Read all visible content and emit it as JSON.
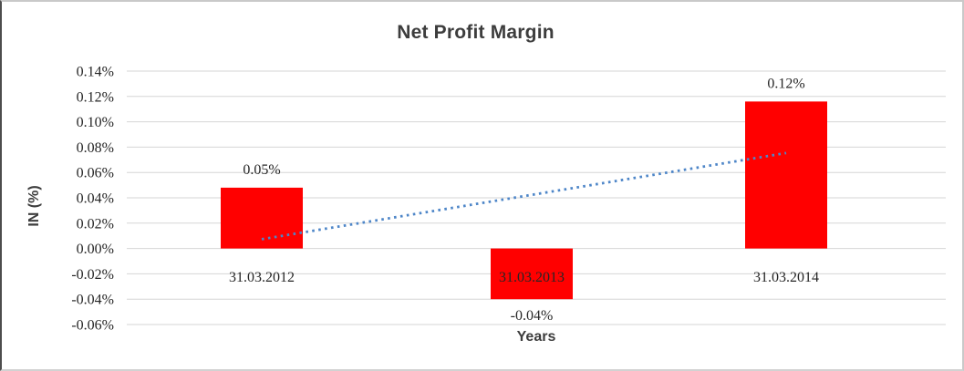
{
  "window": {
    "background": "#ffffff",
    "frame_border_color": "#c9c9c9",
    "frame_left_border_color": "#4d4d4d"
  },
  "chart_data": {
    "type": "bar",
    "title": "Net Profit Margin",
    "xlabel": "Years",
    "ylabel": "IN (%)",
    "categories": [
      "31.03.2012",
      "31.03.2013",
      "31.03.2014"
    ],
    "values": [
      0.048,
      -0.04,
      0.116
    ],
    "data_labels": [
      "0.05%",
      "-0.04%",
      "0.12%"
    ],
    "unit": "%",
    "ylim": [
      -0.06,
      0.14
    ],
    "ytick_step": 0.02,
    "ytick_labels": [
      "0.14%",
      "0.12%",
      "0.10%",
      "0.08%",
      "0.06%",
      "0.04%",
      "0.02%",
      "0.00%",
      "-0.02%",
      "-0.04%",
      "-0.06%"
    ],
    "grid": true,
    "legend": "none",
    "plot_bg": "#ffffff",
    "bar_color": "#ff0000",
    "grid_color": "#d6d6d6",
    "label_text_color": "#262626",
    "title_text_color": "#3d3d3d",
    "trendline": {
      "type": "linear",
      "style": "dotted",
      "color": "#4e86c8",
      "spans": "first to last category center"
    }
  }
}
